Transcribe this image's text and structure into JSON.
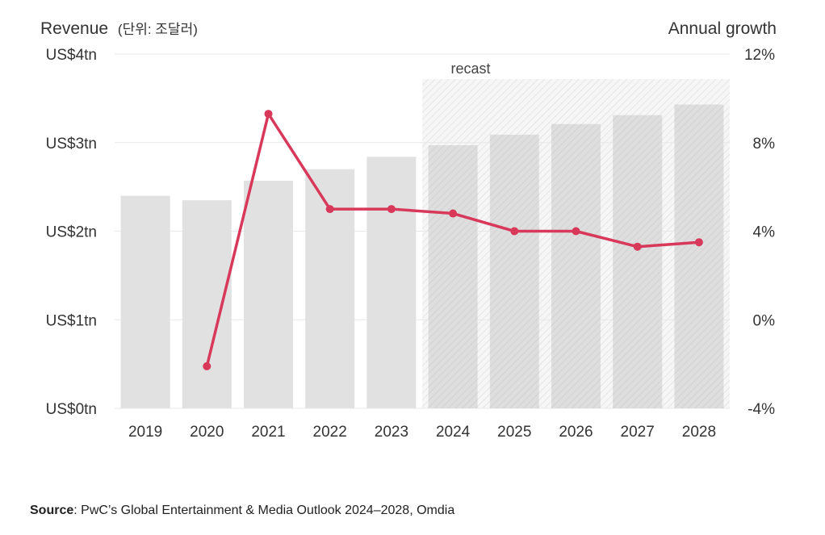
{
  "chart_data": {
    "type": "bar+line",
    "title_left_main": "Revenue",
    "title_left_sub": "(단위: 조달러)",
    "title_right": "Annual growth",
    "categories": [
      "2019",
      "2020",
      "2021",
      "2022",
      "2023",
      "2024",
      "2025",
      "2026",
      "2027",
      "2028"
    ],
    "bar_series": {
      "name": "Revenue",
      "unit": "US$ tn",
      "values": [
        2.4,
        2.35,
        2.57,
        2.7,
        2.84,
        2.97,
        3.09,
        3.21,
        3.31,
        3.43
      ]
    },
    "line_series": {
      "name": "Annual growth",
      "unit": "%",
      "values": [
        null,
        -2.1,
        9.3,
        5.0,
        5.0,
        4.8,
        4.0,
        4.0,
        3.3,
        3.5
      ]
    },
    "y_left": {
      "min": 0,
      "max": 4,
      "ticks": [
        "US$0tn",
        "US$1tn",
        "US$2tn",
        "US$3tn",
        "US$4tn"
      ]
    },
    "y_right": {
      "min": -4,
      "max": 12,
      "ticks": [
        "-4%",
        "0%",
        "4%",
        "8%",
        "12%"
      ]
    },
    "forecast": {
      "label": "recast",
      "from": "2024",
      "to": "2028"
    },
    "colors": {
      "bar": "#e1e1e1",
      "bar_forecast": "#dcdcdc",
      "line": "#d8395a",
      "grid": "#e8e8e8",
      "text": "#333333"
    },
    "grid": true
  },
  "source": {
    "label": "Source",
    "text": ": PwC’s Global Entertainment & Media Outlook 2024–2028, Omdia"
  }
}
